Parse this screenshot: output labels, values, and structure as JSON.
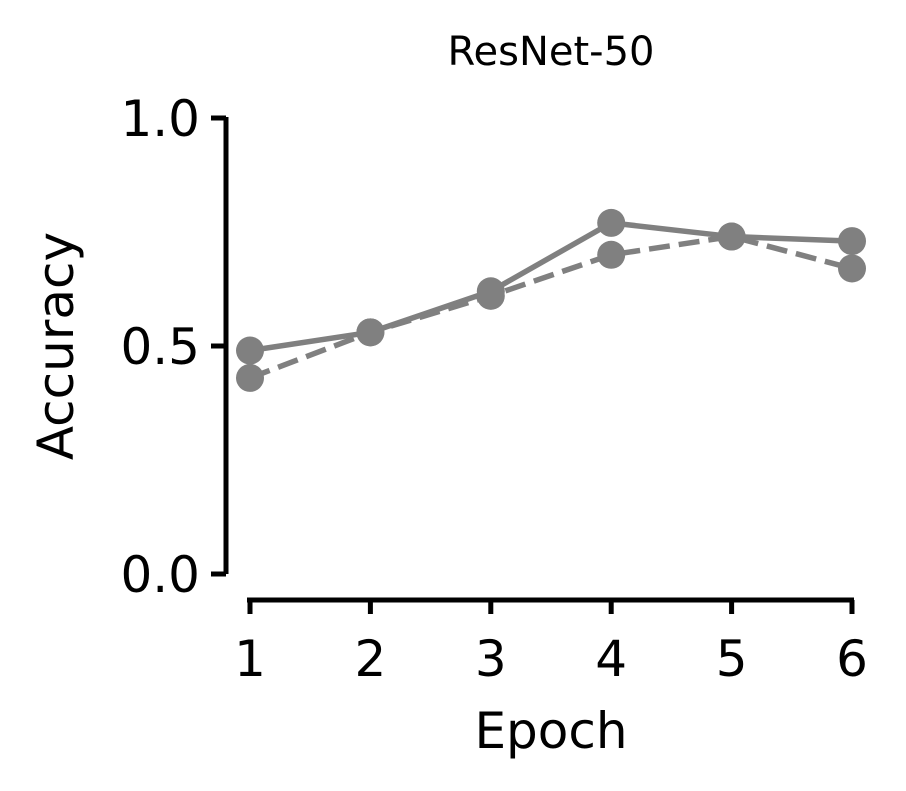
{
  "chart_data": {
    "type": "line",
    "title": "ResNet-50",
    "xlabel": "Epoch",
    "ylabel": "Accuracy",
    "x": [
      1,
      2,
      3,
      4,
      5,
      6
    ],
    "xticks": [
      "1",
      "2",
      "3",
      "4",
      "5",
      "6"
    ],
    "yticks": [
      "0.0",
      "0.5",
      "1.0"
    ],
    "ylim": [
      0,
      1
    ],
    "xlim": [
      1,
      6
    ],
    "grid": false,
    "series": [
      {
        "values": [
          0.49,
          0.53,
          0.62,
          0.77,
          0.74,
          0.73
        ],
        "line_style": "solid",
        "color": "#808080"
      },
      {
        "values": [
          0.43,
          0.53,
          0.61,
          0.7,
          0.74,
          0.67
        ],
        "line_style": "dashed",
        "color": "#808080"
      }
    ]
  }
}
